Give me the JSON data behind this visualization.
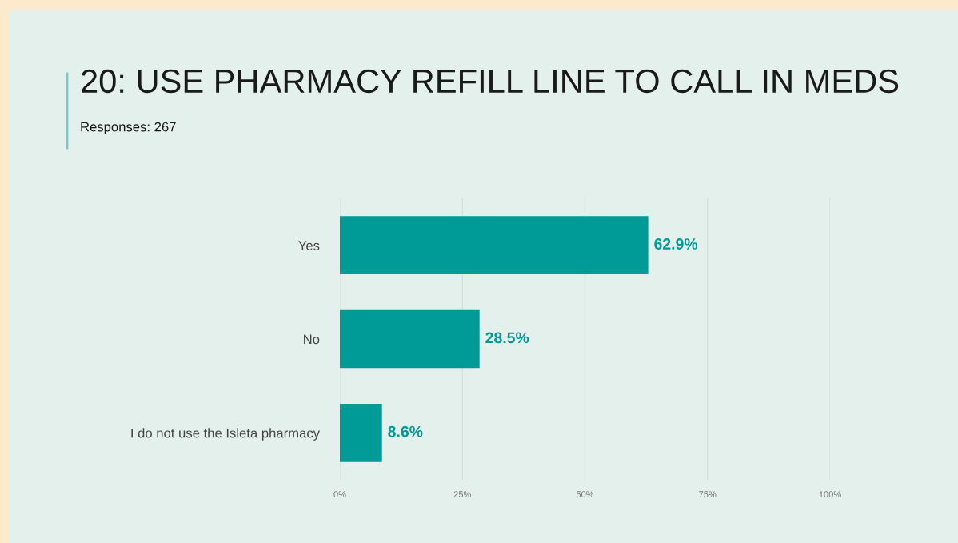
{
  "chart_data": {
    "type": "bar",
    "orientation": "horizontal",
    "title": "20: USE PHARMACY REFILL LINE TO CALL IN MEDS",
    "subtitle": "Responses: 267",
    "categories": [
      "Yes",
      "No",
      "I do not use the Isleta pharmacy"
    ],
    "values": [
      62.9,
      28.5,
      8.6
    ],
    "color": "#009a97",
    "value_labels": [
      "62.9%",
      "28.5%",
      "8.6%"
    ],
    "xlim": [
      0,
      100
    ],
    "xticks": [
      {
        "value": 0,
        "label": "0%"
      },
      {
        "value": 25,
        "label": "25%"
      },
      {
        "value": 50,
        "label": "50%"
      },
      {
        "value": 75,
        "label": "75%"
      },
      {
        "value": 100,
        "label": "100%"
      }
    ],
    "grid": "x",
    "legend": false
  }
}
